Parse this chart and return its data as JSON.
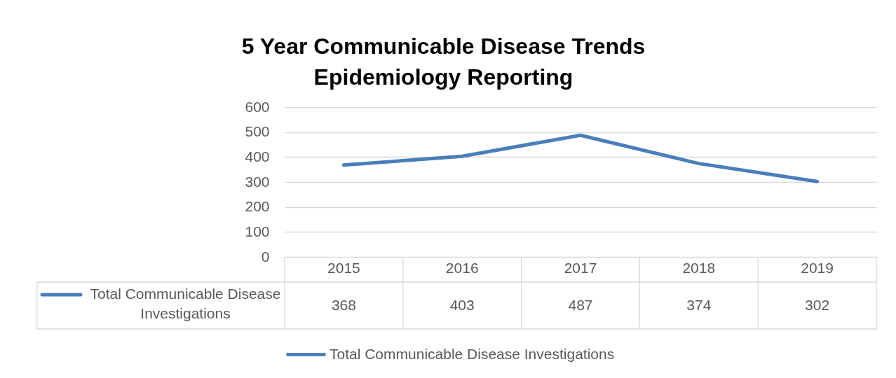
{
  "chart_data": {
    "type": "line",
    "title": "5 Year Communicable Disease Trends",
    "subtitle": "Epidemiology Reporting",
    "categories": [
      "2015",
      "2016",
      "2017",
      "2018",
      "2019"
    ],
    "series": [
      {
        "name": "Total Communicable Disease Investigations",
        "color": "#4a7ebb",
        "values": [
          368,
          403,
          487,
          374,
          302
        ]
      }
    ],
    "ylim": [
      0,
      600
    ],
    "yticks": [
      0,
      100,
      200,
      300,
      400,
      500,
      600
    ],
    "grid": "y",
    "legend": "bottom",
    "data_labels": true
  }
}
